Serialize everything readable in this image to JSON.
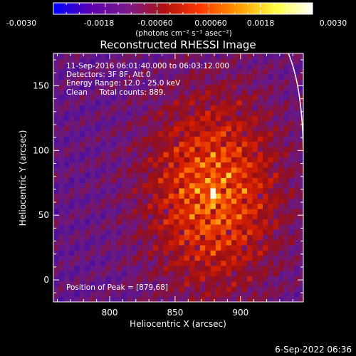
{
  "colorbar": {
    "ticks": [
      "-0.0030",
      "-0.0018",
      "-0.00060",
      "0.00060",
      "0.0018",
      "0.0030"
    ],
    "unit_label": "(photons cm⁻² s⁻¹ asec⁻²)",
    "colors": [
      "#0000ff",
      "#5a00b0",
      "#7a1a8a",
      "#b01010",
      "#ff3a00",
      "#ff9a00",
      "#ffff40",
      "#ffffff"
    ]
  },
  "chart_data": {
    "type": "heatmap",
    "title": "Reconstructed RHESSI Image",
    "xlabel": "Heliocentric X (arcsec)",
    "ylabel": "Heliocentric Y (arcsec)",
    "xlim": [
      757,
      948
    ],
    "ylim": [
      -17,
      175
    ],
    "xticks": [
      800,
      850,
      900
    ],
    "yticks": [
      0,
      50,
      100,
      150
    ],
    "vmin": -0.003,
    "vmax": 0.003,
    "peak": [
      879,
      68
    ],
    "annotations": [
      "11-Sep-2016 06:01:40.000 to 06:03:12.000",
      "Detectors: 3F 8F, Att 0",
      "Energy Range: 12.0 - 25.0 keV",
      "Clean     Total counts: 889.",
      "Position of Peak = [879,68]"
    ]
  },
  "footer": {
    "timestamp": "6-Sep-2022 06:36"
  }
}
